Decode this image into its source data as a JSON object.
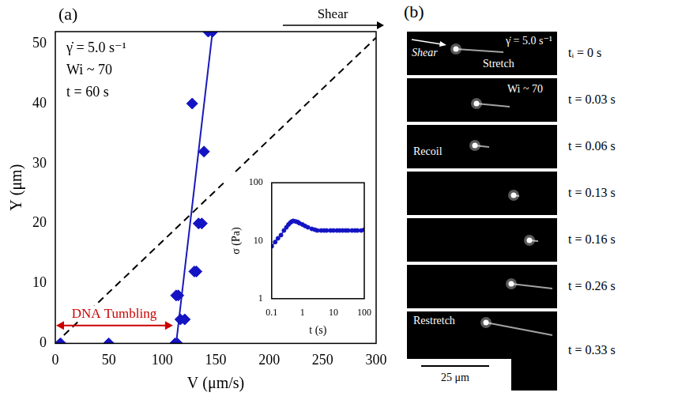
{
  "chart_data": [
    {
      "type": "scatter",
      "panel": "(a)",
      "x_label": "V (μm/s)",
      "y_label": "Y (μm)",
      "xlim": [
        0,
        300
      ],
      "xticks": [
        0,
        50,
        100,
        150,
        200,
        250,
        300
      ],
      "ylim": [
        0,
        52
      ],
      "yticks": [
        0,
        10,
        20,
        30,
        40,
        50
      ],
      "grid": false,
      "annotations": [
        "γ̇ = 5.0 s⁻¹",
        "Wi ~ 70",
        "t = 60 s"
      ],
      "shear_label": "Shear",
      "range_arrow": {
        "text": "DNA Tumbling",
        "color": "#cc0000",
        "x": [
          0,
          110
        ],
        "y": 3
      },
      "series": [
        {
          "type": "scatter",
          "color": "#1414c4",
          "marker": "diamond",
          "x": [
            5,
            50,
            112,
            114,
            113,
            115,
            117,
            121,
            130,
            132,
            128,
            134,
            137,
            139,
            143,
            147
          ],
          "values": [
            0,
            0,
            0,
            0,
            8,
            8,
            4,
            4,
            12,
            12,
            40,
            20,
            20,
            32,
            52,
            52
          ]
        },
        {
          "type": "line",
          "color": "#1a1ab8",
          "line_style": "solid",
          "marker": "none",
          "x": [
            113,
            147
          ],
          "values": [
            0,
            52
          ]
        },
        {
          "type": "line",
          "color": "#000000",
          "line_style": "dashed",
          "marker": "none",
          "x": [
            0,
            300
          ],
          "values": [
            0,
            51
          ]
        }
      ]
    },
    {
      "type": "line",
      "x_label": "t (s)",
      "y_label": "σ (Pa)",
      "log": true,
      "xlim": [
        0.1,
        100
      ],
      "xticks": [
        0.1,
        1,
        10,
        100
      ],
      "ylim": [
        1,
        100
      ],
      "yticks": [
        1,
        10,
        100
      ],
      "grid": false,
      "series": [
        {
          "type": "line",
          "color": "#1414c4",
          "marker": "circle",
          "line_style": "solid",
          "x": [
            0.1,
            0.13,
            0.16,
            0.2,
            0.25,
            0.3,
            0.35,
            0.4,
            0.45,
            0.5,
            0.6,
            0.7,
            0.8,
            1,
            1.2,
            1.5,
            2,
            2.5,
            3,
            4,
            5,
            6,
            8,
            10,
            13,
            16,
            20,
            25,
            30,
            40,
            50,
            60,
            80,
            100
          ],
          "values": [
            8,
            9.5,
            11,
            12.5,
            15,
            17,
            19,
            20.5,
            21.5,
            22,
            21.5,
            21,
            20,
            19,
            18,
            17,
            16,
            15.5,
            15,
            15,
            15,
            15,
            15,
            15,
            15,
            15,
            15,
            15,
            15,
            15,
            15,
            15,
            15,
            15.5
          ]
        }
      ]
    }
  ],
  "panel_b": {
    "label": "(b)",
    "frames": [
      {
        "time": "tᵢ = 0 s",
        "rate": "γ̇ = 5.0 s⁻¹",
        "shear": "Shear",
        "state": "Stretch"
      },
      {
        "time": "t = 0.03 s",
        "wi": "Wi ~ 70"
      },
      {
        "time": "t = 0.06 s",
        "state": "Recoil"
      },
      {
        "time": "t = 0.13 s"
      },
      {
        "time": "t = 0.16 s"
      },
      {
        "time": "t = 0.26 s"
      },
      {
        "time": "t = 0.33 s",
        "state": "Restretch"
      }
    ],
    "scale_bar": "25 μm"
  }
}
